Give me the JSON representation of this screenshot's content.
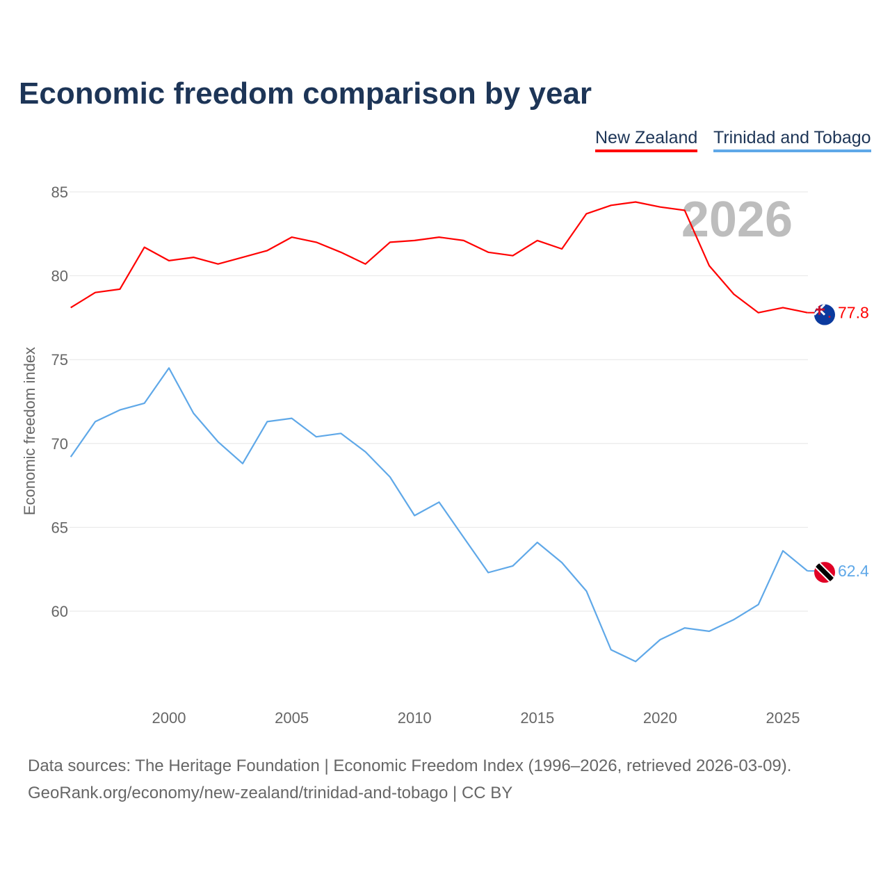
{
  "chart_data": {
    "type": "line",
    "title": "Economic freedom comparison by year",
    "ylabel": "Economic freedom index",
    "xlabel": "",
    "ylim": [
      55,
      86
    ],
    "xlim": [
      1996,
      2026
    ],
    "yticks": [
      60,
      65,
      70,
      75,
      80,
      85
    ],
    "xticks": [
      2000,
      2005,
      2010,
      2015,
      2020,
      2025
    ],
    "grid": true,
    "legend_placement": "top-right",
    "year_label": "2026",
    "x": [
      1996,
      1997,
      1998,
      1999,
      2000,
      2001,
      2002,
      2003,
      2004,
      2005,
      2006,
      2007,
      2008,
      2009,
      2010,
      2011,
      2012,
      2013,
      2014,
      2015,
      2016,
      2017,
      2018,
      2019,
      2020,
      2021,
      2022,
      2023,
      2024,
      2025,
      2026
    ],
    "series": [
      {
        "name": "New Zealand",
        "color": "#ff0000",
        "end_label": "77.8",
        "values": [
          78.1,
          79.0,
          79.2,
          81.7,
          80.9,
          81.1,
          80.7,
          81.1,
          81.5,
          82.3,
          82.0,
          81.4,
          80.7,
          82.0,
          82.1,
          82.3,
          82.1,
          81.4,
          81.2,
          82.1,
          81.6,
          83.7,
          84.2,
          84.4,
          84.1,
          83.9,
          80.6,
          78.9,
          77.8,
          78.1,
          77.8
        ]
      },
      {
        "name": "Trinidad and Tobago",
        "color": "#5fa8e8",
        "end_label": "62.4",
        "values": [
          69.2,
          71.3,
          72.0,
          72.4,
          74.5,
          71.8,
          70.1,
          68.8,
          71.3,
          71.5,
          70.4,
          70.6,
          69.5,
          68.0,
          65.7,
          66.5,
          64.4,
          62.3,
          62.7,
          64.1,
          62.9,
          61.2,
          57.7,
          57.0,
          58.3,
          59.0,
          58.8,
          59.5,
          60.4,
          63.6,
          62.4
        ]
      }
    ]
  },
  "footer": {
    "line1": "Data sources: The Heritage Foundation | Economic Freedom Index (1996–2026, retrieved 2026-03-09).",
    "line2": "GeoRank.org/economy/new-zealand/trinidad-and-tobago | CC BY"
  }
}
